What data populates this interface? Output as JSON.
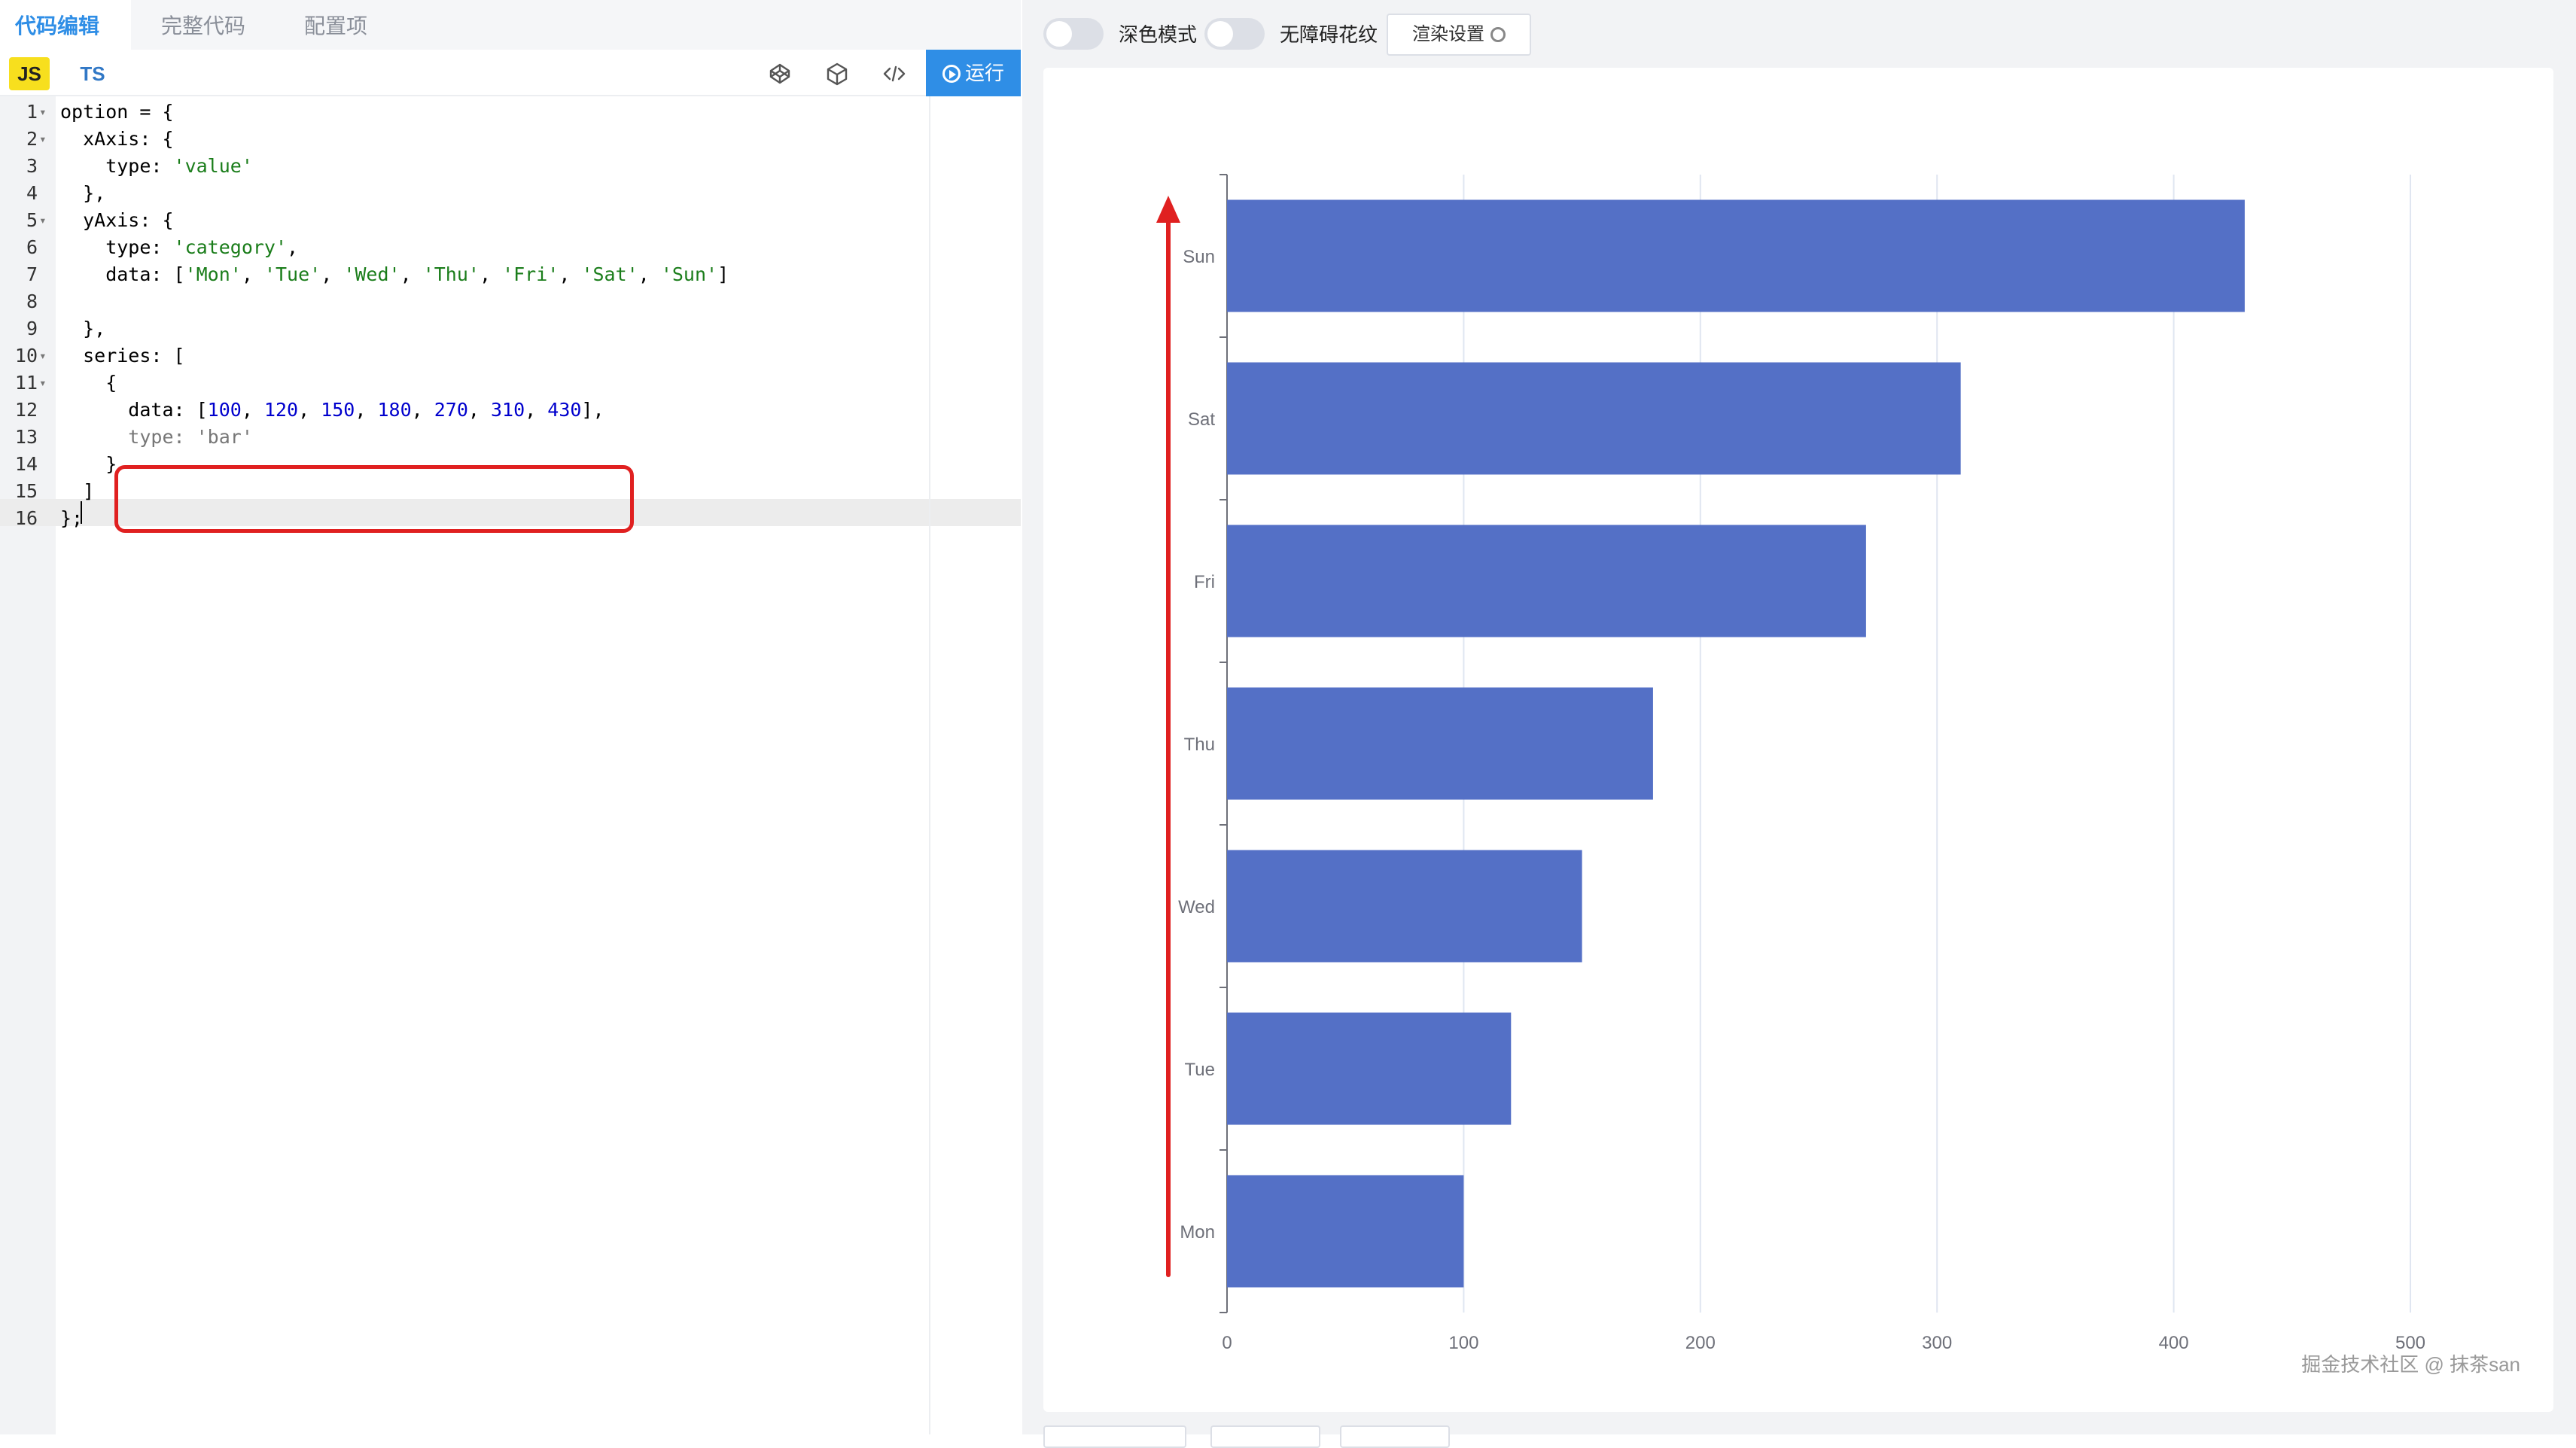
{
  "tabs": [
    {
      "label": "代码编辑"
    },
    {
      "label": "完整代码"
    },
    {
      "label": "配置项"
    }
  ],
  "toolbar": {
    "lang_js": "JS",
    "lang_ts": "TS",
    "run_label": "运行"
  },
  "editor": {
    "lines": [
      {
        "n": "1",
        "fold": true,
        "parts": [
          [
            "t",
            "option = {"
          ]
        ]
      },
      {
        "n": "2",
        "fold": true,
        "parts": [
          [
            "t",
            "  xAxis: {"
          ]
        ]
      },
      {
        "n": "3",
        "fold": false,
        "parts": [
          [
            "t",
            "    type: "
          ],
          [
            "s",
            "'value'"
          ]
        ]
      },
      {
        "n": "4",
        "fold": false,
        "parts": [
          [
            "t",
            "  },"
          ]
        ]
      },
      {
        "n": "5",
        "fold": true,
        "parts": [
          [
            "t",
            "  yAxis: {"
          ]
        ]
      },
      {
        "n": "6",
        "fold": false,
        "parts": [
          [
            "t",
            "    type: "
          ],
          [
            "s",
            "'category'"
          ],
          [
            "t",
            ","
          ]
        ]
      },
      {
        "n": "7",
        "fold": false,
        "parts": [
          [
            "t",
            "    data: ["
          ],
          [
            "s",
            "'Mon'"
          ],
          [
            "t",
            ", "
          ],
          [
            "s",
            "'Tue'"
          ],
          [
            "t",
            ", "
          ],
          [
            "s",
            "'Wed'"
          ],
          [
            "t",
            ", "
          ],
          [
            "s",
            "'Thu'"
          ],
          [
            "t",
            ", "
          ],
          [
            "s",
            "'Fri'"
          ],
          [
            "t",
            ", "
          ],
          [
            "s",
            "'Sat'"
          ],
          [
            "t",
            ", "
          ],
          [
            "s",
            "'Sun'"
          ],
          [
            "t",
            "]"
          ]
        ]
      },
      {
        "n": "8",
        "fold": false,
        "parts": [
          [
            "t",
            ""
          ]
        ]
      },
      {
        "n": "9",
        "fold": false,
        "parts": [
          [
            "t",
            "  },"
          ]
        ]
      },
      {
        "n": "10",
        "fold": true,
        "parts": [
          [
            "t",
            "  series: ["
          ]
        ]
      },
      {
        "n": "11",
        "fold": true,
        "parts": [
          [
            "t",
            "    {"
          ]
        ]
      },
      {
        "n": "12",
        "fold": false,
        "parts": [
          [
            "t",
            "      data: ["
          ],
          [
            "n",
            "100"
          ],
          [
            "t",
            ", "
          ],
          [
            "n",
            "120"
          ],
          [
            "t",
            ", "
          ],
          [
            "n",
            "150"
          ],
          [
            "t",
            ", "
          ],
          [
            "n",
            "180"
          ],
          [
            "t",
            ", "
          ],
          [
            "n",
            "270"
          ],
          [
            "t",
            ", "
          ],
          [
            "n",
            "310"
          ],
          [
            "t",
            ", "
          ],
          [
            "n",
            "430"
          ],
          [
            "t",
            "],"
          ]
        ]
      },
      {
        "n": "13",
        "fold": false,
        "parts": [
          [
            "f",
            "      type: 'bar'"
          ]
        ]
      },
      {
        "n": "14",
        "fold": false,
        "parts": [
          [
            "t",
            "    }"
          ]
        ]
      },
      {
        "n": "15",
        "fold": false,
        "parts": [
          [
            "t",
            "  ]"
          ]
        ]
      },
      {
        "n": "16",
        "fold": false,
        "parts": [
          [
            "t",
            "};"
          ]
        ]
      }
    ]
  },
  "preview": {
    "dark_mode_label": "深色模式",
    "aria_label": "无障碍花纹",
    "render_settings_label": "渲染设置",
    "watermark": "掘金技术社区 @ 抹茶san"
  },
  "colors": {
    "bar": "#5470c6",
    "accent": "#2f8ee6",
    "annotation_red": "#e02020",
    "axis_text": "#6e7079",
    "grid": "#e0e6f1"
  },
  "chart_data": {
    "type": "bar",
    "orientation": "horizontal",
    "categories": [
      "Mon",
      "Tue",
      "Wed",
      "Thu",
      "Fri",
      "Sat",
      "Sun"
    ],
    "values": [
      100,
      120,
      150,
      180,
      270,
      310,
      430
    ],
    "x_ticks": [
      0,
      100,
      200,
      300,
      400,
      500
    ],
    "xlim": [
      0,
      500
    ],
    "grid": true,
    "legend": "none"
  }
}
